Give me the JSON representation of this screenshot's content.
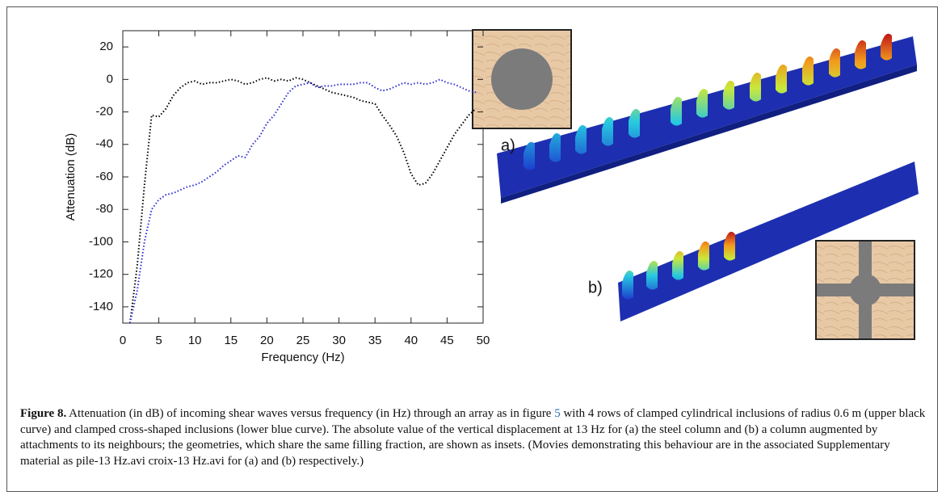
{
  "chart_data": {
    "type": "line",
    "xlabel": "Frequency (Hz)",
    "ylabel": "Attenuation (dB)",
    "x": [
      1,
      2,
      3,
      4,
      5,
      6,
      7,
      8,
      9,
      10,
      11,
      12,
      13,
      14,
      15,
      16,
      17,
      18,
      19,
      20,
      21,
      22,
      23,
      24,
      25,
      26,
      27,
      28,
      29,
      30,
      31,
      32,
      33,
      34,
      35,
      36,
      37,
      38,
      39,
      40,
      41,
      42,
      43,
      44,
      45,
      46,
      47,
      48,
      49
    ],
    "series": [
      {
        "color": "#000000",
        "values": [
          -150,
          -115,
          -65,
          -22,
          -23,
          -18,
          -10,
          -5,
          -2,
          -1,
          -3,
          -2,
          -2,
          -1,
          0,
          -1,
          -3,
          -2,
          0,
          1,
          -1,
          0,
          -1,
          1,
          0,
          -2,
          -4,
          -6,
          -8,
          -9,
          -10,
          -11,
          -13,
          -14,
          -15,
          -22,
          -28,
          -35,
          -45,
          -58,
          -65,
          -64,
          -58,
          -50,
          -42,
          -34,
          -28,
          -22,
          -18
        ]
      },
      {
        "color": "#2b2bd6",
        "values": [
          -150,
          -130,
          -100,
          -80,
          -74,
          -71,
          -70,
          -68,
          -66,
          -65,
          -63,
          -60,
          -57,
          -53,
          -50,
          -47,
          -48,
          -40,
          -35,
          -27,
          -22,
          -15,
          -8,
          -4,
          -3,
          -2,
          -5,
          -4,
          -4,
          -3,
          -3,
          -3,
          -2,
          -2,
          -5,
          -7,
          -6,
          -4,
          -2,
          -3,
          -2,
          -3,
          -2,
          0,
          -2,
          -3,
          -5,
          -7,
          -8
        ]
      }
    ],
    "xlim": [
      0,
      50
    ],
    "ylim": [
      -150,
      30
    ],
    "xticks": [
      0,
      5,
      10,
      15,
      20,
      25,
      30,
      35,
      40,
      45,
      50
    ],
    "yticks": [
      20,
      0,
      -20,
      -40,
      -60,
      -80,
      -100,
      -120,
      -140
    ],
    "grid": false
  },
  "panels": {
    "a": "a)",
    "b": "b)"
  },
  "caption": {
    "label": "Figure 8.",
    "before": "Attenuation (in dB) of incoming shear waves versus frequency (in Hz) through an array as in figure",
    "link": "5",
    "after": "with 4 rows of clamped cylindrical inclusions of radius 0.6 m (upper black curve) and clamped cross-shaped inclusions (lower blue curve). The absolute value of the vertical displacement at 13 Hz for (a) the steel column and (b) a column augmented by attachments to its neighbours; the geometries, which share the same filling fraction, are shown as insets. (Movies demonstrating this behaviour are in the associated Supplementary material as pile-13 Hz.avi croix-13 Hz.avi for (a) and (b) respectively.)"
  }
}
